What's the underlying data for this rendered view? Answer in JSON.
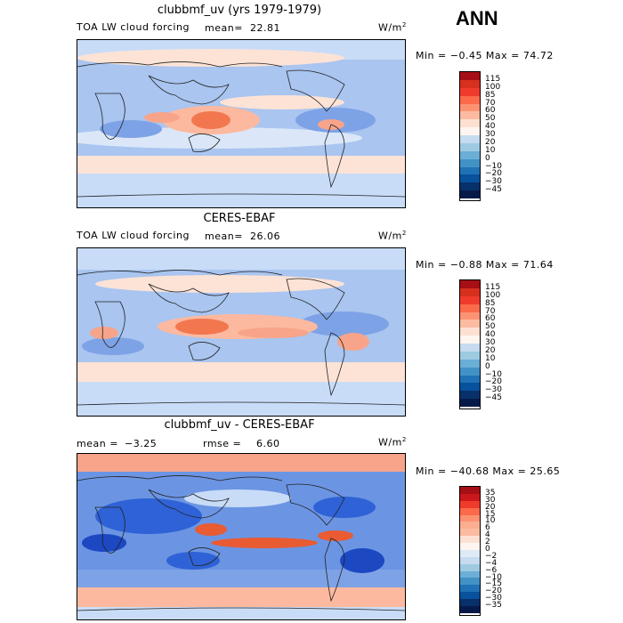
{
  "season": "ANN",
  "units": "W/m",
  "units_sup": "2",
  "panels": [
    {
      "title": "clubbmf_uv (yrs 1979-1979)",
      "subtitle": "TOA LW cloud forcing",
      "mean_label": "mean=",
      "mean_value": "22.81",
      "minmax": "Min =  −0.45 Max =  74.72",
      "colorbar_levels": [
        "115",
        "100",
        "85",
        "70",
        "60",
        "50",
        "40",
        "30",
        "20",
        "10",
        "0",
        "−10",
        "−20",
        "−30",
        "−45"
      ],
      "colorbar_colors": [
        "#a50f15",
        "#d7301f",
        "#ef3b2c",
        "#fb6a4a",
        "#fc9272",
        "#fcbba1",
        "#fee0d2",
        "#fff5f0",
        "#c6dbef",
        "#9ecae1",
        "#6baed6",
        "#4292c6",
        "#2171b5",
        "#08519c",
        "#08306b",
        "#061a4a"
      ]
    },
    {
      "title": "CERES-EBAF",
      "subtitle": "TOA LW cloud forcing",
      "mean_label": "mean=",
      "mean_value": "26.06",
      "minmax": "Min =  −0.88 Max =  71.64",
      "colorbar_levels": [
        "115",
        "100",
        "85",
        "70",
        "60",
        "50",
        "40",
        "30",
        "20",
        "10",
        "0",
        "−10",
        "−20",
        "−30",
        "−45"
      ],
      "colorbar_colors": [
        "#a50f15",
        "#d7301f",
        "#ef3b2c",
        "#fb6a4a",
        "#fc9272",
        "#fcbba1",
        "#fee0d2",
        "#fff5f0",
        "#c6dbef",
        "#9ecae1",
        "#6baed6",
        "#4292c6",
        "#2171b5",
        "#08519c",
        "#08306b",
        "#061a4a"
      ]
    },
    {
      "title": "clubbmf_uv - CERES-EBAF",
      "mean_label": "mean =",
      "mean_value": "−3.25",
      "rmse_label": "rmse =",
      "rmse_value": "6.60",
      "minmax": "Min = −40.68 Max =  25.65",
      "colorbar_levels": [
        "35",
        "30",
        "20",
        "15",
        "10",
        "6",
        "4",
        "2",
        "0",
        "−2",
        "−4",
        "−6",
        "−10",
        "−15",
        "−20",
        "−30",
        "−35"
      ],
      "colorbar_colors": [
        "#a50f15",
        "#cb181d",
        "#ef3b2c",
        "#fb6a4a",
        "#fc9272",
        "#fcae91",
        "#fcbba1",
        "#fee0d2",
        "#fff5f0",
        "#deebf7",
        "#c6dbef",
        "#9ecae1",
        "#6baed6",
        "#4292c6",
        "#2171b5",
        "#08519c",
        "#08306b",
        "#061a4a"
      ]
    }
  ]
}
